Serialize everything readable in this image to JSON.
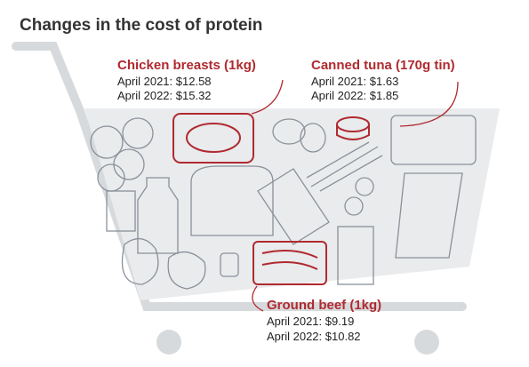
{
  "title": "Changes in the cost of protein",
  "items": [
    {
      "name": "Chicken breasts (1kg)",
      "lines": [
        "April 2021: $12.58",
        "April 2022: $15.32"
      ]
    },
    {
      "name": "Canned tuna (170g tin)",
      "lines": [
        "April 2021: $1.63",
        "April 2022: $1.85"
      ]
    },
    {
      "name": "Ground beef (1kg)",
      "lines": [
        "April 2021: $9.19",
        "April 2022: $10.82"
      ]
    }
  ]
}
